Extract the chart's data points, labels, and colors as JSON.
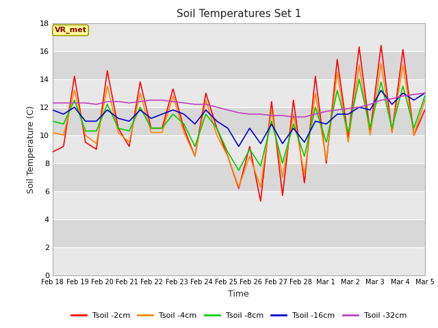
{
  "title": "Soil Temperatures Set 1",
  "xlabel": "Time",
  "ylabel": "Soil Temperature (C)",
  "ylim": [
    0,
    18
  ],
  "yticks": [
    0,
    2,
    4,
    6,
    8,
    10,
    12,
    14,
    16,
    18
  ],
  "annotation_text": "VR_met",
  "legend_labels": [
    "Tsoil -2cm",
    "Tsoil -4cm",
    "Tsoil -8cm",
    "Tsoil -16cm",
    "Tsoil -32cm"
  ],
  "line_colors": [
    "#ff0000",
    "#ff8800",
    "#00cc00",
    "#0000cc",
    "#bb44bb"
  ],
  "line_widths": [
    1.2,
    1.2,
    1.2,
    1.2,
    1.2
  ],
  "background_color": "#ffffff",
  "plot_bg_color": "#d8d8d8",
  "band_color_light": "#e8e8e8",
  "grid_color": "#ffffff",
  "xtick_labels": [
    "Feb 18",
    "Feb 19",
    "Feb 20",
    "Feb 21",
    "Feb 22",
    "Feb 23",
    "Feb 24",
    "Feb 25",
    "Feb 26",
    "Feb 27",
    "Feb 28",
    "Mar 1",
    "Mar 2",
    "Mar 3",
    "Mar 4",
    "Mar 5"
  ],
  "tsoil_2cm": [
    8.8,
    9.2,
    14.2,
    9.5,
    9.0,
    14.6,
    10.5,
    9.2,
    13.8,
    10.5,
    10.5,
    13.3,
    10.5,
    8.5,
    13.0,
    10.5,
    8.5,
    6.2,
    9.2,
    5.3,
    12.4,
    5.7,
    12.5,
    6.6,
    14.2,
    8.0,
    15.4,
    9.8,
    16.3,
    10.2,
    16.4,
    10.2,
    16.1,
    10.0,
    11.8
  ],
  "tsoil_4cm": [
    10.2,
    10.0,
    13.2,
    10.0,
    9.4,
    13.5,
    10.2,
    9.5,
    13.0,
    10.2,
    10.2,
    12.8,
    10.2,
    8.5,
    12.5,
    10.0,
    8.5,
    6.3,
    8.5,
    6.3,
    11.8,
    7.0,
    11.5,
    7.2,
    13.0,
    8.2,
    14.5,
    9.5,
    15.0,
    10.0,
    15.1,
    10.2,
    15.0,
    10.0,
    12.5
  ],
  "tsoil_8cm": [
    11.0,
    10.8,
    12.5,
    10.3,
    10.3,
    12.2,
    10.5,
    10.3,
    12.0,
    10.5,
    10.5,
    11.5,
    10.8,
    9.2,
    11.5,
    10.5,
    8.8,
    7.5,
    9.0,
    7.8,
    11.0,
    8.0,
    10.8,
    8.5,
    12.0,
    9.5,
    13.2,
    10.2,
    14.0,
    10.5,
    13.8,
    10.5,
    13.5,
    10.5,
    12.8
  ],
  "tsoil_16cm": [
    11.8,
    11.5,
    12.0,
    11.0,
    11.0,
    11.8,
    11.2,
    11.0,
    11.8,
    11.2,
    11.5,
    11.8,
    11.5,
    10.8,
    11.8,
    11.0,
    10.5,
    9.2,
    10.5,
    9.4,
    10.8,
    9.4,
    10.5,
    9.5,
    11.0,
    10.8,
    11.5,
    11.5,
    12.0,
    11.8,
    13.2,
    12.2,
    13.0,
    12.5,
    13.0
  ],
  "tsoil_32cm": [
    12.3,
    12.3,
    12.3,
    12.3,
    12.2,
    12.4,
    12.4,
    12.3,
    12.4,
    12.5,
    12.5,
    12.4,
    12.3,
    12.2,
    12.2,
    12.0,
    11.8,
    11.6,
    11.5,
    11.5,
    11.4,
    11.4,
    11.3,
    11.3,
    11.5,
    11.7,
    11.8,
    11.9,
    12.0,
    12.2,
    12.5,
    12.6,
    12.8,
    12.9,
    13.0
  ]
}
